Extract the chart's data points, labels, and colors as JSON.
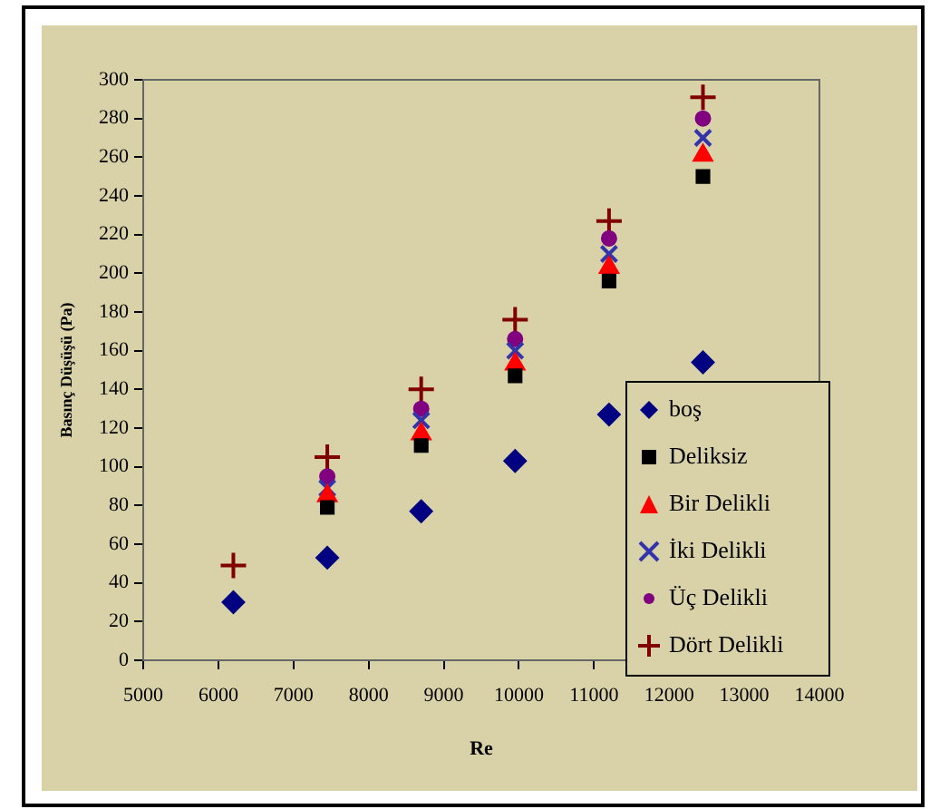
{
  "chart_data": {
    "type": "scatter",
    "xlabel": "Re",
    "ylabel": "Basınç Düşüşü (Pa)",
    "x": [
      6200,
      7450,
      8700,
      9950,
      11200,
      12450
    ],
    "xlim": [
      5000,
      14000
    ],
    "xticks": [
      5000,
      6000,
      7000,
      8000,
      9000,
      10000,
      11000,
      12000,
      13000,
      14000
    ],
    "ylim": [
      0,
      300
    ],
    "yticks": [
      0,
      20,
      40,
      60,
      80,
      100,
      120,
      140,
      160,
      180,
      200,
      220,
      240,
      260,
      280,
      300
    ],
    "grid": false,
    "legend": "bottom right",
    "series": [
      {
        "name": "boş",
        "color": "#000080",
        "marker": "diamond",
        "values": [
          30,
          53,
          77,
          103,
          127,
          154
        ]
      },
      {
        "name": "Deliksiz",
        "color": "#000000",
        "marker": "square",
        "values": [
          null,
          79,
          111,
          147,
          196,
          250
        ]
      },
      {
        "name": "Bir Delikli",
        "color": "#ff0000",
        "marker": "triangle",
        "values": [
          null,
          85,
          117,
          153,
          203,
          261
        ]
      },
      {
        "name": "İki Delikli",
        "color": "#3333aa",
        "marker": "x",
        "values": [
          null,
          89,
          124,
          160,
          210,
          270
        ]
      },
      {
        "name": "Üç Delikli",
        "color": "#800080",
        "marker": "circle",
        "values": [
          null,
          95,
          130,
          166,
          218,
          280
        ]
      },
      {
        "name": "Dört Delikli",
        "color": "#800000",
        "marker": "cross",
        "values": [
          49,
          105,
          140,
          176,
          227,
          291
        ]
      }
    ]
  }
}
